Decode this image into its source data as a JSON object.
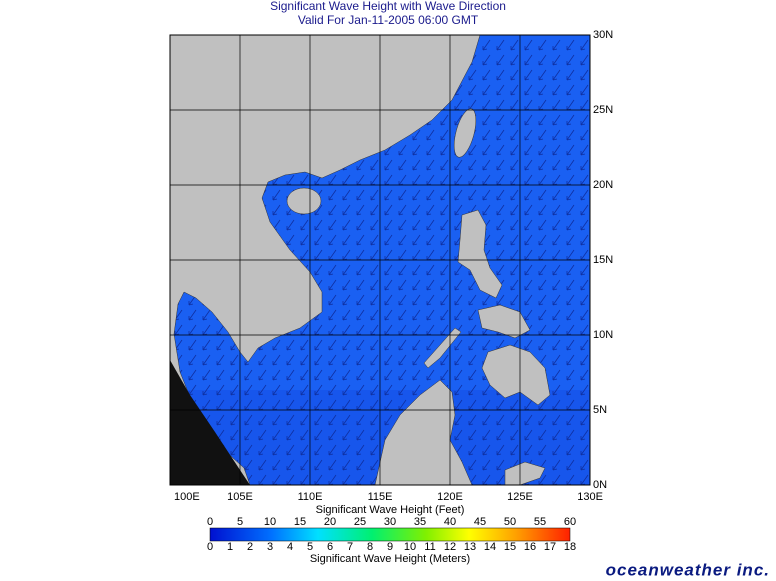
{
  "header": {
    "title": "Significant Wave Height with Wave Direction",
    "subtitle": "Valid For Jan-11-2005 06:00 GMT"
  },
  "map": {
    "lat_labels": [
      "0N",
      "5N",
      "10N",
      "15N",
      "20N",
      "25N",
      "30N"
    ],
    "lon_labels": [
      "100E",
      "105E",
      "110E",
      "115E",
      "120E",
      "125E",
      "130E"
    ]
  },
  "colorbar": {
    "feet_title": "Significant Wave Height (Feet)",
    "feet_ticks": [
      0,
      5,
      10,
      15,
      20,
      25,
      30,
      35,
      40,
      45,
      50,
      55,
      60
    ],
    "meters_title": "Significant Wave Height (Meters)",
    "meters_ticks": [
      0,
      1,
      2,
      3,
      4,
      5,
      6,
      7,
      8,
      9,
      10,
      11,
      12,
      13,
      14,
      15,
      16,
      17,
      18
    ]
  },
  "logo": "oceanweather inc."
}
